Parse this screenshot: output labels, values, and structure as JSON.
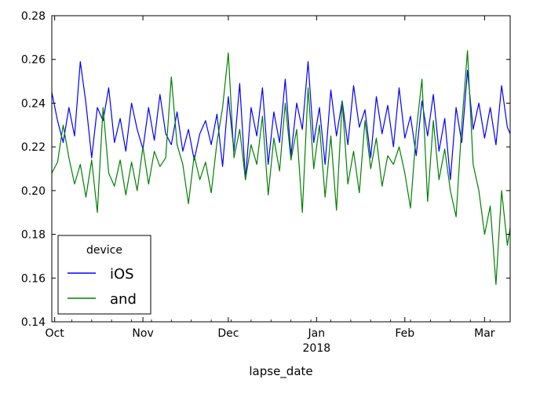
{
  "chart_data": {
    "type": "line",
    "xlabel": "lapse_date",
    "ylabel": "",
    "title": "",
    "ylim": [
      0.14,
      0.28
    ],
    "y_ticks": [
      "0.14",
      "0.16",
      "0.18",
      "0.20",
      "0.22",
      "0.24",
      "0.26",
      "0.28"
    ],
    "x_range": [
      "2017-09-30",
      "2018-03-10"
    ],
    "x_ticks": [
      {
        "date": "2017-10-01",
        "label": "Oct",
        "sublabel": ""
      },
      {
        "date": "2017-11-01",
        "label": "Nov",
        "sublabel": ""
      },
      {
        "date": "2017-12-01",
        "label": "Dec",
        "sublabel": ""
      },
      {
        "date": "2018-01-01",
        "label": "Jan",
        "sublabel": "2018"
      },
      {
        "date": "2018-02-01",
        "label": "Feb",
        "sublabel": ""
      },
      {
        "date": "2018-03-01",
        "label": "Mar",
        "sublabel": ""
      }
    ],
    "legend": {
      "title": "device",
      "position": "lower-left"
    },
    "series": [
      {
        "name": "iOS",
        "color": "#0000ff",
        "points": [
          [
            "2017-09-30",
            0.245
          ],
          [
            "2017-10-02",
            0.232
          ],
          [
            "2017-10-04",
            0.222
          ],
          [
            "2017-10-06",
            0.238
          ],
          [
            "2017-10-08",
            0.225
          ],
          [
            "2017-10-10",
            0.259
          ],
          [
            "2017-10-12",
            0.24
          ],
          [
            "2017-10-14",
            0.215
          ],
          [
            "2017-10-16",
            0.238
          ],
          [
            "2017-10-18",
            0.232
          ],
          [
            "2017-10-20",
            0.247
          ],
          [
            "2017-10-22",
            0.222
          ],
          [
            "2017-10-24",
            0.233
          ],
          [
            "2017-10-26",
            0.218
          ],
          [
            "2017-10-28",
            0.24
          ],
          [
            "2017-10-30",
            0.228
          ],
          [
            "2017-11-01",
            0.219
          ],
          [
            "2017-11-03",
            0.238
          ],
          [
            "2017-11-05",
            0.223
          ],
          [
            "2017-11-07",
            0.244
          ],
          [
            "2017-11-09",
            0.226
          ],
          [
            "2017-11-11",
            0.221
          ],
          [
            "2017-11-13",
            0.236
          ],
          [
            "2017-11-15",
            0.218
          ],
          [
            "2017-11-17",
            0.228
          ],
          [
            "2017-11-19",
            0.214
          ],
          [
            "2017-11-21",
            0.226
          ],
          [
            "2017-11-23",
            0.232
          ],
          [
            "2017-11-25",
            0.221
          ],
          [
            "2017-11-27",
            0.235
          ],
          [
            "2017-11-29",
            0.211
          ],
          [
            "2017-12-01",
            0.243
          ],
          [
            "2017-12-03",
            0.218
          ],
          [
            "2017-12-05",
            0.249
          ],
          [
            "2017-12-07",
            0.205
          ],
          [
            "2017-12-09",
            0.238
          ],
          [
            "2017-12-11",
            0.225
          ],
          [
            "2017-12-13",
            0.247
          ],
          [
            "2017-12-15",
            0.212
          ],
          [
            "2017-12-17",
            0.236
          ],
          [
            "2017-12-19",
            0.222
          ],
          [
            "2017-12-21",
            0.251
          ],
          [
            "2017-12-23",
            0.216
          ],
          [
            "2017-12-25",
            0.24
          ],
          [
            "2017-12-27",
            0.228
          ],
          [
            "2017-12-29",
            0.259
          ],
          [
            "2017-12-31",
            0.222
          ],
          [
            "2018-01-02",
            0.238
          ],
          [
            "2018-01-04",
            0.212
          ],
          [
            "2018-01-06",
            0.246
          ],
          [
            "2018-01-08",
            0.225
          ],
          [
            "2018-01-10",
            0.241
          ],
          [
            "2018-01-12",
            0.221
          ],
          [
            "2018-01-14",
            0.248
          ],
          [
            "2018-01-16",
            0.229
          ],
          [
            "2018-01-18",
            0.237
          ],
          [
            "2018-01-20",
            0.215
          ],
          [
            "2018-01-22",
            0.243
          ],
          [
            "2018-01-24",
            0.226
          ],
          [
            "2018-01-26",
            0.239
          ],
          [
            "2018-01-28",
            0.22
          ],
          [
            "2018-01-30",
            0.247
          ],
          [
            "2018-02-01",
            0.224
          ],
          [
            "2018-02-03",
            0.234
          ],
          [
            "2018-02-05",
            0.216
          ],
          [
            "2018-02-07",
            0.241
          ],
          [
            "2018-02-09",
            0.225
          ],
          [
            "2018-02-11",
            0.244
          ],
          [
            "2018-02-13",
            0.218
          ],
          [
            "2018-02-15",
            0.233
          ],
          [
            "2018-02-17",
            0.205
          ],
          [
            "2018-02-19",
            0.238
          ],
          [
            "2018-02-21",
            0.222
          ],
          [
            "2018-02-23",
            0.255
          ],
          [
            "2018-02-25",
            0.228
          ],
          [
            "2018-02-27",
            0.24
          ],
          [
            "2018-03-01",
            0.224
          ],
          [
            "2018-03-03",
            0.238
          ],
          [
            "2018-03-05",
            0.221
          ],
          [
            "2018-03-07",
            0.248
          ],
          [
            "2018-03-09",
            0.229
          ],
          [
            "2018-03-10",
            0.226
          ]
        ]
      },
      {
        "name": "and",
        "color": "#008000",
        "points": [
          [
            "2017-09-30",
            0.208
          ],
          [
            "2017-10-02",
            0.213
          ],
          [
            "2017-10-04",
            0.23
          ],
          [
            "2017-10-06",
            0.215
          ],
          [
            "2017-10-08",
            0.203
          ],
          [
            "2017-10-10",
            0.212
          ],
          [
            "2017-10-12",
            0.197
          ],
          [
            "2017-10-14",
            0.214
          ],
          [
            "2017-10-16",
            0.19
          ],
          [
            "2017-10-18",
            0.238
          ],
          [
            "2017-10-20",
            0.208
          ],
          [
            "2017-10-22",
            0.202
          ],
          [
            "2017-10-24",
            0.214
          ],
          [
            "2017-10-26",
            0.198
          ],
          [
            "2017-10-28",
            0.213
          ],
          [
            "2017-10-30",
            0.2
          ],
          [
            "2017-11-01",
            0.22
          ],
          [
            "2017-11-03",
            0.203
          ],
          [
            "2017-11-05",
            0.218
          ],
          [
            "2017-11-07",
            0.211
          ],
          [
            "2017-11-09",
            0.215
          ],
          [
            "2017-11-11",
            0.252
          ],
          [
            "2017-11-13",
            0.221
          ],
          [
            "2017-11-15",
            0.212
          ],
          [
            "2017-11-17",
            0.194
          ],
          [
            "2017-11-19",
            0.216
          ],
          [
            "2017-11-21",
            0.205
          ],
          [
            "2017-11-23",
            0.213
          ],
          [
            "2017-11-25",
            0.199
          ],
          [
            "2017-11-27",
            0.222
          ],
          [
            "2017-11-29",
            0.238
          ],
          [
            "2017-12-01",
            0.263
          ],
          [
            "2017-12-03",
            0.215
          ],
          [
            "2017-12-05",
            0.228
          ],
          [
            "2017-12-07",
            0.205
          ],
          [
            "2017-12-09",
            0.221
          ],
          [
            "2017-12-11",
            0.212
          ],
          [
            "2017-12-13",
            0.234
          ],
          [
            "2017-12-15",
            0.198
          ],
          [
            "2017-12-17",
            0.224
          ],
          [
            "2017-12-19",
            0.209
          ],
          [
            "2017-12-21",
            0.24
          ],
          [
            "2017-12-23",
            0.214
          ],
          [
            "2017-12-25",
            0.228
          ],
          [
            "2017-12-27",
            0.19
          ],
          [
            "2017-12-29",
            0.247
          ],
          [
            "2017-12-31",
            0.21
          ],
          [
            "2018-01-02",
            0.23
          ],
          [
            "2018-01-04",
            0.197
          ],
          [
            "2018-01-06",
            0.225
          ],
          [
            "2018-01-08",
            0.191
          ],
          [
            "2018-01-10",
            0.241
          ],
          [
            "2018-01-12",
            0.203
          ],
          [
            "2018-01-14",
            0.218
          ],
          [
            "2018-01-16",
            0.199
          ],
          [
            "2018-01-18",
            0.232
          ],
          [
            "2018-01-20",
            0.21
          ],
          [
            "2018-01-22",
            0.224
          ],
          [
            "2018-01-24",
            0.202
          ],
          [
            "2018-01-26",
            0.216
          ],
          [
            "2018-01-28",
            0.212
          ],
          [
            "2018-01-30",
            0.22
          ],
          [
            "2018-02-01",
            0.208
          ],
          [
            "2018-02-03",
            0.192
          ],
          [
            "2018-02-05",
            0.227
          ],
          [
            "2018-02-07",
            0.251
          ],
          [
            "2018-02-09",
            0.195
          ],
          [
            "2018-02-11",
            0.232
          ],
          [
            "2018-02-13",
            0.205
          ],
          [
            "2018-02-15",
            0.219
          ],
          [
            "2018-02-17",
            0.2
          ],
          [
            "2018-02-19",
            0.188
          ],
          [
            "2018-02-21",
            0.23
          ],
          [
            "2018-02-23",
            0.264
          ],
          [
            "2018-02-25",
            0.212
          ],
          [
            "2018-02-27",
            0.2
          ],
          [
            "2018-03-01",
            0.18
          ],
          [
            "2018-03-03",
            0.193
          ],
          [
            "2018-03-05",
            0.157
          ],
          [
            "2018-03-07",
            0.2
          ],
          [
            "2018-03-09",
            0.175
          ],
          [
            "2018-03-10",
            0.183
          ]
        ]
      }
    ]
  }
}
